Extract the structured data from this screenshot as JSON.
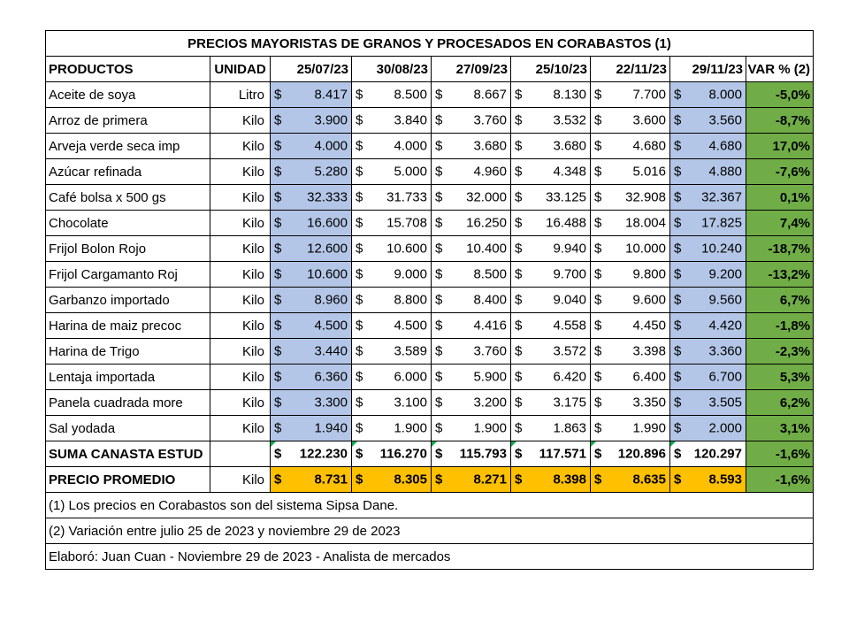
{
  "title": "PRECIOS MAYORISTAS DE GRANOS Y PROCESADOS EN CORABASTOS (1)",
  "headers": {
    "product": "PRODUCTOS",
    "unit": "UNIDAD",
    "dates": [
      "25/07/23",
      "30/08/23",
      "27/09/23",
      "25/10/23",
      "22/11/23",
      "29/11/23"
    ],
    "variation": "VAR % (2)"
  },
  "currency_symbol": "$",
  "rows": [
    {
      "product": "Aceite de soya",
      "unit": "Litro",
      "prices": [
        "8.417",
        "8.500",
        "8.667",
        "8.130",
        "7.700",
        "8.000"
      ],
      "variation": "-5,0%"
    },
    {
      "product": "Arroz de primera",
      "unit": "Kilo",
      "prices": [
        "3.900",
        "3.840",
        "3.760",
        "3.532",
        "3.600",
        "3.560"
      ],
      "variation": "-8,7%"
    },
    {
      "product": "Arveja verde seca imp",
      "unit": "Kilo",
      "prices": [
        "4.000",
        "4.000",
        "3.680",
        "3.680",
        "4.680",
        "4.680"
      ],
      "variation": "17,0%"
    },
    {
      "product": "Azúcar refinada",
      "unit": "Kilo",
      "prices": [
        "5.280",
        "5.000",
        "4.960",
        "4.348",
        "5.016",
        "4.880"
      ],
      "variation": "-7,6%"
    },
    {
      "product": "Café bolsa x 500 gs",
      "unit": "Kilo",
      "prices": [
        "32.333",
        "31.733",
        "32.000",
        "33.125",
        "32.908",
        "32.367"
      ],
      "variation": "0,1%"
    },
    {
      "product": "Chocolate",
      "unit": "Kilo",
      "prices": [
        "16.600",
        "15.708",
        "16.250",
        "16.488",
        "18.004",
        "17.825"
      ],
      "variation": "7,4%"
    },
    {
      "product": "Frijol Bolon Rojo",
      "unit": "Kilo",
      "prices": [
        "12.600",
        "10.600",
        "10.400",
        "9.940",
        "10.000",
        "10.240"
      ],
      "variation": "-18,7%"
    },
    {
      "product": "Frijol Cargamanto Roj",
      "unit": "Kilo",
      "prices": [
        "10.600",
        "9.000",
        "8.500",
        "9.700",
        "9.800",
        "9.200"
      ],
      "variation": "-13,2%"
    },
    {
      "product": "Garbanzo importado",
      "unit": "Kilo",
      "prices": [
        "8.960",
        "8.800",
        "8.400",
        "9.040",
        "9.600",
        "9.560"
      ],
      "variation": "6,7%"
    },
    {
      "product": "Harina de maiz precoc",
      "unit": "Kilo",
      "prices": [
        "4.500",
        "4.500",
        "4.416",
        "4.558",
        "4.450",
        "4.420"
      ],
      "variation": "-1,8%"
    },
    {
      "product": "Harina de Trigo",
      "unit": "Kilo",
      "prices": [
        "3.440",
        "3.589",
        "3.760",
        "3.572",
        "3.398",
        "3.360"
      ],
      "variation": "-2,3%"
    },
    {
      "product": "Lentaja importada",
      "unit": "Kilo",
      "prices": [
        "6.360",
        "6.000",
        "5.900",
        "6.420",
        "6.400",
        "6.700"
      ],
      "variation": "5,3%"
    },
    {
      "product": "Panela cuadrada more",
      "unit": "Kilo",
      "prices": [
        "3.300",
        "3.100",
        "3.200",
        "3.175",
        "3.350",
        "3.505"
      ],
      "variation": "6,2%"
    },
    {
      "product": "Sal yodada",
      "unit": "Kilo",
      "prices": [
        "1.940",
        "1.900",
        "1.900",
        "1.863",
        "1.990",
        "2.000"
      ],
      "variation": "3,1%"
    }
  ],
  "sum_row": {
    "label": "SUMA CANASTA  ESTUD",
    "unit": "",
    "prices": [
      "122.230",
      "116.270",
      "115.793",
      "117.571",
      "120.896",
      "120.297"
    ],
    "variation": "-1,6%"
  },
  "avg_row": {
    "label": "PRECIO PROMEDIO",
    "unit": "Kilo",
    "prices": [
      "8.731",
      "8.305",
      "8.271",
      "8.398",
      "8.635",
      "8.593"
    ],
    "variation": "-1,6%"
  },
  "notes": [
    "(1) Los precios en Corabastos son del sistema Sipsa Dane.",
    "(2) Variación entre julio 25 de 2023 y noviembre 29 de 2023",
    "Elaboró: Juan Cuan - Noviembre 29 de 2023 - Analista de mercados"
  ],
  "colors": {
    "first_last_price_fill": "#b4c6e7",
    "variation_fill": "#70ad47",
    "average_fill": "#ffc000"
  }
}
